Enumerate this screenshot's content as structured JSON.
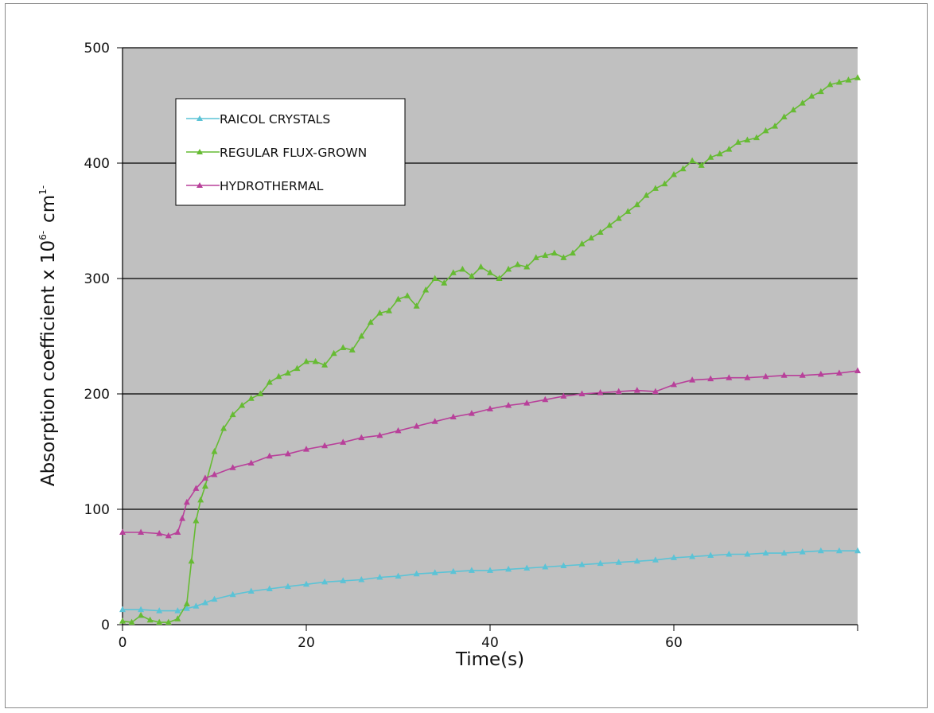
{
  "chart_data": {
    "type": "line",
    "title": "",
    "xlabel": "Time(s)",
    "ylabel_main": "Absorption coefficient x 10",
    "ylabel_exp": "6-",
    "ylabel_unit": "cm",
    "ylabel_unit_exp": "1-",
    "xlim": [
      0,
      80
    ],
    "ylim": [
      0,
      500
    ],
    "x_ticks": [
      "0",
      "20",
      "40",
      "60"
    ],
    "y_ticks": [
      "0",
      "100",
      "200",
      "300",
      "400",
      "500"
    ],
    "grid": "horizontal",
    "plot_background": "#c0c0c0",
    "legend_position": "top-left",
    "series": [
      {
        "name": "RAICOL CRYSTALS",
        "color": "#5bc3d6",
        "marker": "triangle",
        "x": [
          0,
          2,
          4,
          6,
          7,
          8,
          9,
          10,
          12,
          14,
          16,
          18,
          20,
          22,
          24,
          26,
          28,
          30,
          32,
          34,
          36,
          38,
          40,
          42,
          44,
          46,
          48,
          50,
          52,
          54,
          56,
          58,
          60,
          62,
          64,
          66,
          68,
          70,
          72,
          74,
          76,
          78,
          80
        ],
        "y": [
          13,
          13,
          12,
          12,
          14,
          16,
          19,
          22,
          26,
          29,
          31,
          33,
          35,
          37,
          38,
          39,
          41,
          42,
          44,
          45,
          46,
          47,
          47,
          48,
          49,
          50,
          51,
          52,
          53,
          54,
          55,
          56,
          58,
          59,
          60,
          61,
          61,
          62,
          62,
          63,
          64,
          64,
          64
        ]
      },
      {
        "name": "REGULAR FLUX-GROWN",
        "color": "#66bb33",
        "marker": "triangle",
        "x": [
          0,
          1,
          2,
          3,
          4,
          5,
          6,
          7,
          7.5,
          8,
          8.5,
          9,
          10,
          11,
          12,
          13,
          14,
          15,
          16,
          17,
          18,
          19,
          20,
          21,
          22,
          23,
          24,
          25,
          26,
          27,
          28,
          29,
          30,
          31,
          32,
          33,
          34,
          35,
          36,
          37,
          38,
          39,
          40,
          41,
          42,
          43,
          44,
          45,
          46,
          47,
          48,
          49,
          50,
          51,
          52,
          53,
          54,
          55,
          56,
          57,
          58,
          59,
          60,
          61,
          62,
          63,
          64,
          65,
          66,
          67,
          68,
          69,
          70,
          71,
          72,
          73,
          74,
          75,
          76,
          77,
          78,
          79,
          80
        ],
        "y": [
          3,
          2,
          8,
          4,
          2,
          2,
          5,
          18,
          55,
          90,
          108,
          120,
          150,
          170,
          182,
          190,
          196,
          200,
          210,
          215,
          218,
          222,
          228,
          228,
          225,
          235,
          240,
          238,
          250,
          262,
          270,
          272,
          282,
          285,
          276,
          290,
          300,
          296,
          305,
          308,
          302,
          310,
          305,
          300,
          308,
          312,
          310,
          318,
          320,
          322,
          318,
          322,
          330,
          335,
          340,
          346,
          352,
          358,
          364,
          372,
          378,
          382,
          390,
          395,
          402,
          398,
          405,
          408,
          412,
          418,
          420,
          422,
          428,
          432,
          440,
          446,
          452,
          458,
          462,
          468,
          470,
          472,
          474
        ]
      },
      {
        "name": "HYDROTHERMAL",
        "color": "#b8409a",
        "marker": "triangle",
        "x": [
          0,
          2,
          4,
          5,
          6,
          6.5,
          7,
          8,
          9,
          10,
          12,
          14,
          16,
          18,
          20,
          22,
          24,
          26,
          28,
          30,
          32,
          34,
          36,
          38,
          40,
          42,
          44,
          46,
          48,
          50,
          52,
          54,
          56,
          58,
          60,
          62,
          64,
          66,
          68,
          70,
          72,
          74,
          76,
          78,
          80
        ],
        "y": [
          80,
          80,
          79,
          77,
          80,
          92,
          106,
          118,
          127,
          130,
          136,
          140,
          146,
          148,
          152,
          155,
          158,
          162,
          164,
          168,
          172,
          176,
          180,
          183,
          187,
          190,
          192,
          195,
          198,
          200,
          201,
          202,
          203,
          202,
          208,
          212,
          213,
          214,
          214,
          215,
          216,
          216,
          217,
          218,
          220
        ]
      }
    ]
  }
}
